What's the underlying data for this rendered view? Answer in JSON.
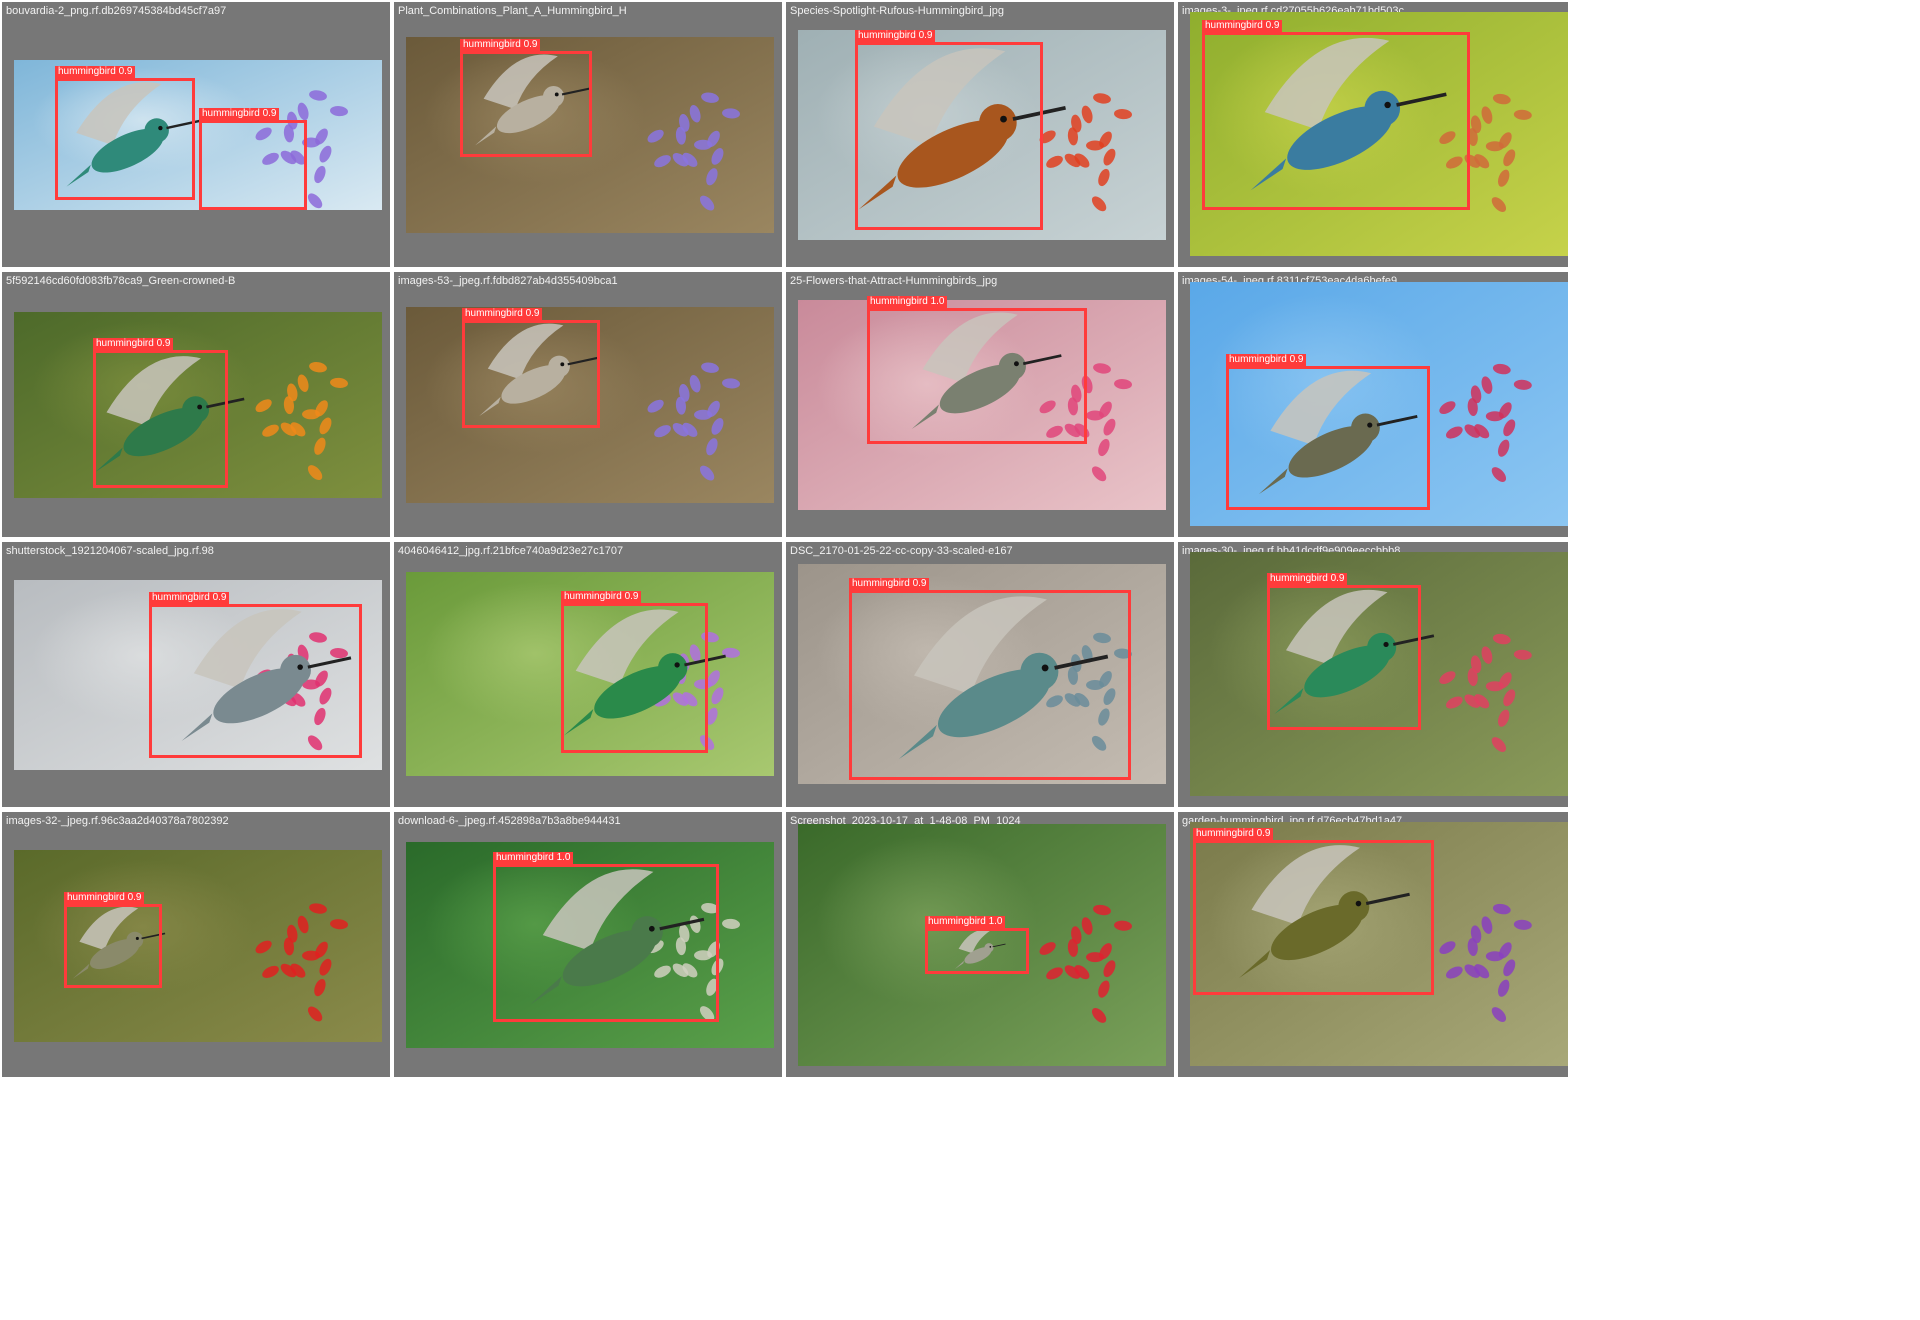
{
  "colors": {
    "tile_bg": "#777777",
    "box": "#ff3b3b",
    "label_text": "#ffffff",
    "title_text": "#f2f2f2"
  },
  "tiles": [
    {
      "title": "bouvardia-2_png.rf.db269745384bd45cf7a97",
      "palette": {
        "bg1": "#7fb6d9",
        "bg2": "#d9e9f2",
        "accent": "#8c6ad9",
        "bird": "#2f8a7a"
      },
      "detections": [
        {
          "label": "hummingbird 0.9"
        },
        {
          "label": "hummingbird 0.9"
        }
      ]
    },
    {
      "title": "Plant_Combinations_Plant_A_Hummingbird_H",
      "palette": {
        "bg1": "#6b5a3a",
        "bg2": "#9a8660",
        "accent": "#8a74e0",
        "bird": "#b8b0a0"
      },
      "detections": [
        {
          "label": "hummingbird 0.9"
        }
      ]
    },
    {
      "title": "Species-Spotlight-Rufous-Hummingbird_jpg",
      "palette": {
        "bg1": "#9fb0b4",
        "bg2": "#c7d2d4",
        "accent": "#e04020",
        "bird": "#a8561e"
      },
      "detections": [
        {
          "label": "hummingbird 0.9"
        }
      ]
    },
    {
      "title": "images-3-_jpeg.rf.cd27055b626eab71bd503c",
      "palette": {
        "bg1": "#8fae2e",
        "bg2": "#c6d24a",
        "accent": "#d06a3a",
        "bird": "#3a7ca0"
      },
      "detections": [
        {
          "label": "hummingbird 0.9"
        }
      ]
    },
    {
      "title": "5f592146cd60fd083fb78ca9_Green-crowned-B",
      "palette": {
        "bg1": "#4d6a2a",
        "bg2": "#7e8f3e",
        "accent": "#f08a1a",
        "bird": "#2e7a4a"
      },
      "detections": [
        {
          "label": "hummingbird 0.9"
        }
      ]
    },
    {
      "title": "images-53-_jpeg.rf.fdbd827ab4d355409bca1",
      "palette": {
        "bg1": "#6b5a3a",
        "bg2": "#9a8660",
        "accent": "#8a74e0",
        "bird": "#b8b0a0"
      },
      "detections": [
        {
          "label": "hummingbird 0.9"
        }
      ]
    },
    {
      "title": "25-Flowers-that-Attract-Hummingbirds_jpg",
      "palette": {
        "bg1": "#c98a9a",
        "bg2": "#e9c3c8",
        "accent": "#e0457a",
        "bird": "#7a8070"
      },
      "detections": [
        {
          "label": "hummingbird 1.0"
        }
      ]
    },
    {
      "title": "images-54-_jpeg.rf.8311cf753eac4da6befe9",
      "palette": {
        "bg1": "#5aa8e8",
        "bg2": "#8cc6f2",
        "accent": "#d0305a",
        "bird": "#6a6a50"
      },
      "detections": [
        {
          "label": "hummingbird 0.9"
        }
      ]
    },
    {
      "title": "shutterstock_1921204067-scaled_jpg.rf.98",
      "palette": {
        "bg1": "#b8bcc0",
        "bg2": "#dfe1e2",
        "accent": "#e03070",
        "bird": "#7a8a90"
      },
      "detections": [
        {
          "label": "hummingbird 0.9"
        }
      ]
    },
    {
      "title": "4046046412_jpg.rf.21bfce740a9d23e27c1707",
      "palette": {
        "bg1": "#6a9a3a",
        "bg2": "#a8c870",
        "accent": "#b070e0",
        "bird": "#2a8a4a"
      },
      "detections": [
        {
          "label": "hummingbird 0.9"
        }
      ]
    },
    {
      "title": "DSC_2170-01-25-22-cc-copy-33-scaled-e167",
      "palette": {
        "bg1": "#9c948a",
        "bg2": "#c4bcb2",
        "accent": "#6a8c9a",
        "bird": "#5a8a8a"
      },
      "detections": [
        {
          "label": "hummingbird 0.9"
        }
      ]
    },
    {
      "title": "images-30-_jpeg.rf.bb41dcdf9e909eeccbbb8",
      "palette": {
        "bg1": "#5a6a3a",
        "bg2": "#8a9a5a",
        "accent": "#e04060",
        "bird": "#2a8a5a"
      },
      "detections": [
        {
          "label": "hummingbird 0.9"
        }
      ]
    },
    {
      "title": "images-32-_jpeg.rf.96c3aa2d40378a7802392",
      "palette": {
        "bg1": "#5a6a2a",
        "bg2": "#8a8a4a",
        "accent": "#e02020",
        "bird": "#8a8a6a"
      },
      "detections": [
        {
          "label": "hummingbird 0.9"
        }
      ]
    },
    {
      "title": "download-6-_jpeg.rf.452898a7b3a8be944431",
      "palette": {
        "bg1": "#2a6a2a",
        "bg2": "#5aa04a",
        "accent": "#d0d0c0",
        "bird": "#4a7a4a"
      },
      "detections": [
        {
          "label": "hummingbird 1.0"
        }
      ]
    },
    {
      "title": "Screenshot_2023-10-17_at_1-48-08_PM_1024",
      "palette": {
        "bg1": "#3a6a2a",
        "bg2": "#7aa05a",
        "accent": "#e02030",
        "bird": "#a0a090"
      },
      "detections": [
        {
          "label": "hummingbird 1.0"
        }
      ]
    },
    {
      "title": "garden-hummingbird_jpg.rf.d76ecb47bd1a47",
      "palette": {
        "bg1": "#7a7a4a",
        "bg2": "#a8a878",
        "accent": "#8a40c0",
        "bird": "#6a6a2a"
      },
      "detections": [
        {
          "label": "hummingbird 0.9"
        }
      ]
    }
  ]
}
